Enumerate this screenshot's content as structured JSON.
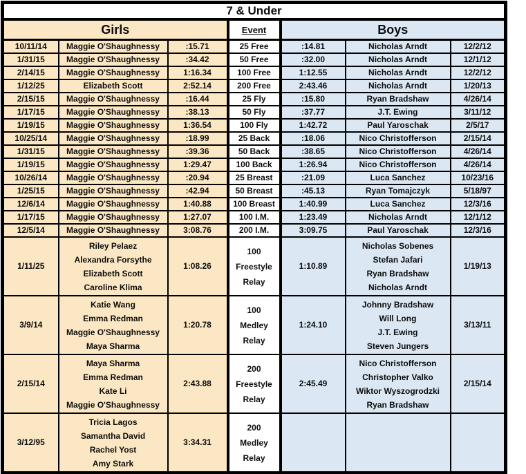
{
  "title": "7 & Under",
  "headers": {
    "girls": "Girls",
    "event": "Event",
    "boys": "Boys"
  },
  "colors": {
    "girls_bg": "#fbe7c3",
    "boys_bg": "#dbe7f3",
    "event_bg": "#ffffff",
    "border": "#000000"
  },
  "rows": [
    {
      "girls": {
        "date": "10/11/14",
        "names": [
          "Maggie O'Shaughnessy"
        ],
        "time": ":15.71"
      },
      "event": [
        "25 Free"
      ],
      "boys": {
        "time": ":14.81",
        "names": [
          "Nicholas Arndt"
        ],
        "date": "12/2/12"
      }
    },
    {
      "girls": {
        "date": "1/31/15",
        "names": [
          "Maggie O'Shaughnessy"
        ],
        "time": ":34.42"
      },
      "event": [
        "50 Free"
      ],
      "boys": {
        "time": ":32.00",
        "names": [
          "Nicholas Arndt"
        ],
        "date": "12/1/12"
      }
    },
    {
      "girls": {
        "date": "2/14/15",
        "names": [
          "Maggie O'Shaughnessy"
        ],
        "time": "1:16.34"
      },
      "event": [
        "100 Free"
      ],
      "boys": {
        "time": "1:12.55",
        "names": [
          "Nicholas Arndt"
        ],
        "date": "12/2/12"
      }
    },
    {
      "girls": {
        "date": "1/12/25",
        "names": [
          "Elizabeth Scott"
        ],
        "time": "2:52.14"
      },
      "event": [
        "200 Free"
      ],
      "boys": {
        "time": "2:43.46",
        "names": [
          "Nicholas Arndt"
        ],
        "date": "1/20/13"
      }
    },
    {
      "girls": {
        "date": "2/15/15",
        "names": [
          "Maggie O'Shaughnessy"
        ],
        "time": ":16.44"
      },
      "event": [
        "25 Fly"
      ],
      "boys": {
        "time": ":15.80",
        "names": [
          "Ryan Bradshaw"
        ],
        "date": "4/26/14"
      }
    },
    {
      "girls": {
        "date": "1/17/15",
        "names": [
          "Maggie O'Shaughnessy"
        ],
        "time": ":38.13"
      },
      "event": [
        "50 Fly"
      ],
      "boys": {
        "time": ":37.77",
        "names": [
          "J.T. Ewing"
        ],
        "date": "3/11/12"
      }
    },
    {
      "girls": {
        "date": "1/19/15",
        "names": [
          "Maggie O'Shaughnessy"
        ],
        "time": "1:36.54"
      },
      "event": [
        "100 Fly"
      ],
      "boys": {
        "time": "1:42.72",
        "names": [
          "Paul Yaroschak"
        ],
        "date": "2/5/17"
      }
    },
    {
      "girls": {
        "date": "10/25/14",
        "names": [
          "Maggie O'Shaughnessy"
        ],
        "time": ":18.99"
      },
      "event": [
        "25 Back"
      ],
      "boys": {
        "time": ":18.06",
        "names": [
          "Nico Christofferson"
        ],
        "date": "2/15/14"
      }
    },
    {
      "girls": {
        "date": "1/31/15",
        "names": [
          "Maggie O'Shaughnessy"
        ],
        "time": ":39.36"
      },
      "event": [
        "50 Back"
      ],
      "boys": {
        "time": ":38.65",
        "names": [
          "Nico Christofferson"
        ],
        "date": "4/26/14"
      }
    },
    {
      "girls": {
        "date": "1/19/15",
        "names": [
          "Maggie O'Shaughnessy"
        ],
        "time": "1:29.47"
      },
      "event": [
        "100 Back"
      ],
      "boys": {
        "time": "1:26.94",
        "names": [
          "Nico Christofferson"
        ],
        "date": "4/26/14"
      }
    },
    {
      "girls": {
        "date": "10/26/14",
        "names": [
          "Maggie O'Shaughnessy"
        ],
        "time": ":20.94"
      },
      "event": [
        "25 Breast"
      ],
      "boys": {
        "time": ":21.09",
        "names": [
          "Luca Sanchez"
        ],
        "date": "10/23/16"
      }
    },
    {
      "girls": {
        "date": "1/25/15",
        "names": [
          "Maggie O'Shaughnessy"
        ],
        "time": ":42.94"
      },
      "event": [
        "50 Breast"
      ],
      "boys": {
        "time": ":45.13",
        "names": [
          "Ryan Tomajczyk"
        ],
        "date": "5/18/97"
      }
    },
    {
      "girls": {
        "date": "12/6/14",
        "names": [
          "Maggie O'Shaughnessy"
        ],
        "time": "1:40.88"
      },
      "event": [
        "100 Breast"
      ],
      "boys": {
        "time": "1:40.99",
        "names": [
          "Luca Sanchez"
        ],
        "date": "12/3/16"
      }
    },
    {
      "girls": {
        "date": "1/17/15",
        "names": [
          "Maggie O'Shaughnessy"
        ],
        "time": "1:27.07"
      },
      "event": [
        "100 I.M."
      ],
      "boys": {
        "time": "1:23.49",
        "names": [
          "Nicholas Arndt"
        ],
        "date": "12/1/12"
      }
    },
    {
      "girls": {
        "date": "12/5/14",
        "names": [
          "Maggie O'Shaughnessy"
        ],
        "time": "3:08.76"
      },
      "event": [
        "200 I.M."
      ],
      "boys": {
        "time": "3:09.75",
        "names": [
          "Paul Yaroschak"
        ],
        "date": "12/3/16"
      }
    },
    {
      "girls": {
        "date": "1/11/25",
        "names": [
          "Riley Pelaez",
          "Alexandra Forsythe",
          "Elizabeth Scott",
          "Caroline Klima"
        ],
        "time": "1:08.26"
      },
      "event": [
        "100",
        "Freestyle",
        "Relay"
      ],
      "boys": {
        "time": "1:10.89",
        "names": [
          "Nicholas Sobenes",
          "Stefan Jafari",
          "Ryan Bradshaw",
          "Nicholas Arndt"
        ],
        "date": "1/19/13"
      }
    },
    {
      "girls": {
        "date": "3/9/14",
        "names": [
          "Katie Wang",
          "Emma Redman",
          "Maggie O'Shaughnessy",
          "Maya Sharma"
        ],
        "time": "1:20.78"
      },
      "event": [
        "100",
        "Medley",
        "Relay"
      ],
      "boys": {
        "time": "1:24.10",
        "names": [
          "Johnny Bradshaw",
          "Will Long",
          "J.T. Ewing",
          "Steven Jungers"
        ],
        "date": "3/13/11"
      }
    },
    {
      "girls": {
        "date": "2/15/14",
        "names": [
          "Maya Sharma",
          "Emma Redman",
          "Kate Li",
          "Maggie O'Shaughnessy"
        ],
        "time": "2:43.88"
      },
      "event": [
        "200",
        "Freestyle",
        "Relay"
      ],
      "boys": {
        "time": "2:45.49",
        "names": [
          "Nico Christofferson",
          "Christopher Valko",
          "Wiktor Wyszogrodzki",
          "Ryan Bradshaw"
        ],
        "date": "2/15/14"
      }
    },
    {
      "girls": {
        "date": "3/12/95",
        "names": [
          "Tricia Lagos",
          "Samantha David",
          "Rachel Yost",
          "Amy Stark"
        ],
        "time": "3:34.31"
      },
      "event": [
        "200",
        "Medley",
        "Relay"
      ],
      "boys": {
        "time": "",
        "names": [],
        "date": ""
      }
    }
  ]
}
